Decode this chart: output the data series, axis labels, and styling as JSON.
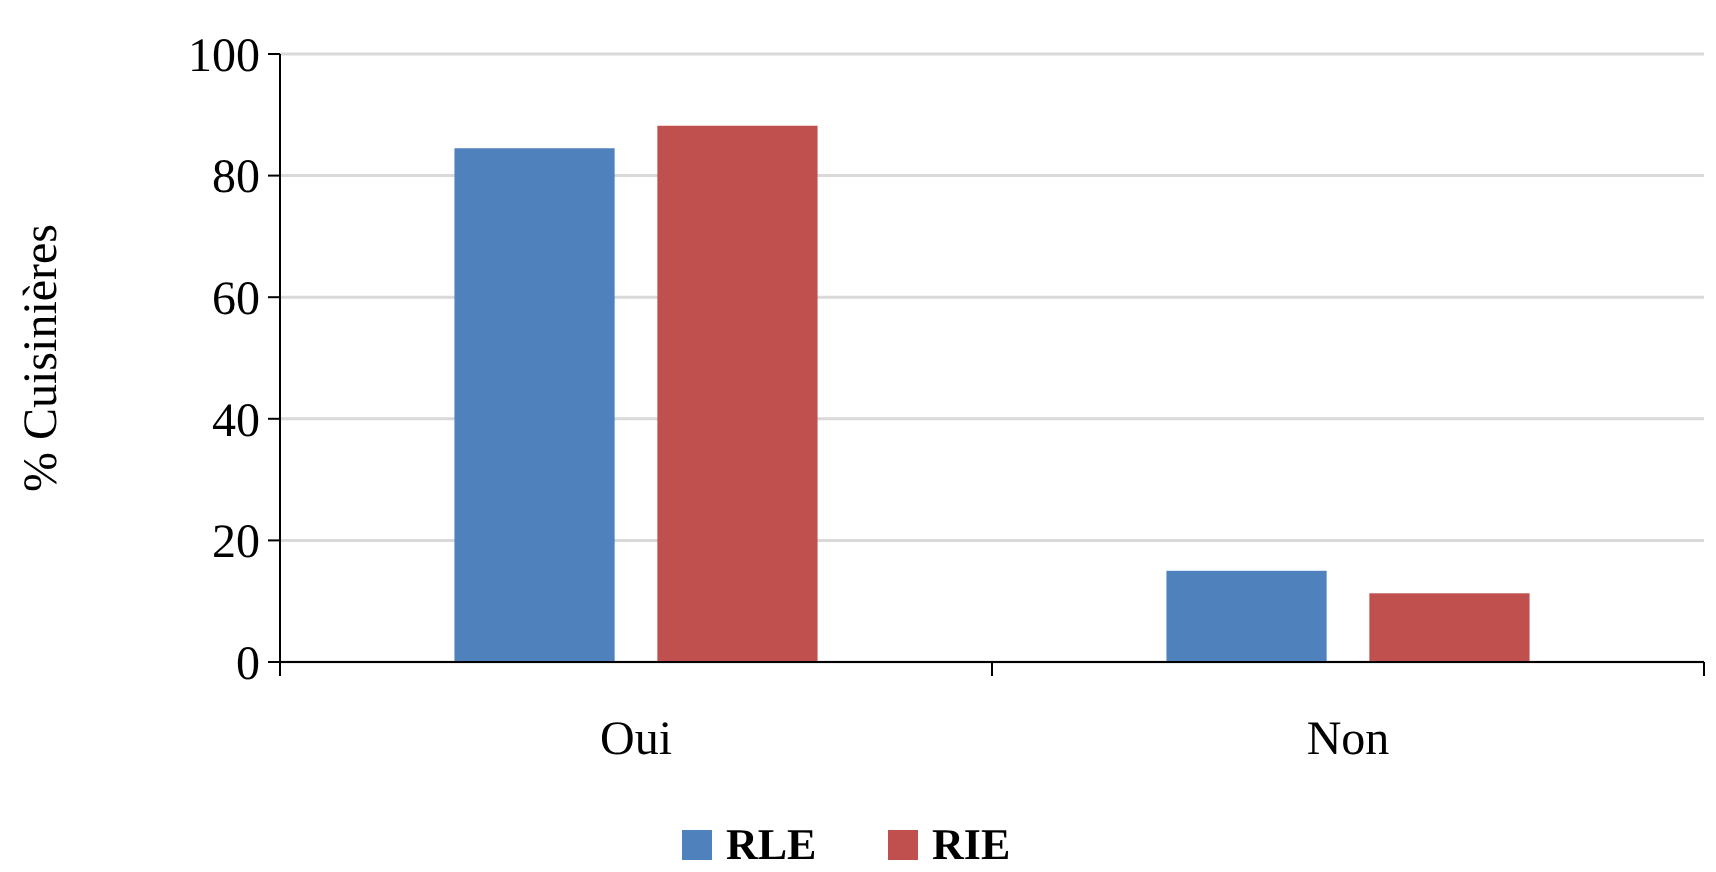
{
  "chart_data": {
    "type": "bar",
    "ylabel": "% Cuisinières",
    "categories": [
      "Oui",
      "Non"
    ],
    "series": [
      {
        "name": "RLE",
        "color": "#4f81bd",
        "values": [
          84.5,
          15
        ]
      },
      {
        "name": "RIE",
        "color": "#c0504d",
        "values": [
          88.2,
          11.3
        ]
      }
    ],
    "ylim": [
      0,
      100
    ],
    "yticks": [
      0,
      20,
      40,
      60,
      80,
      100
    ],
    "grid": "y",
    "legend": "bottom"
  }
}
